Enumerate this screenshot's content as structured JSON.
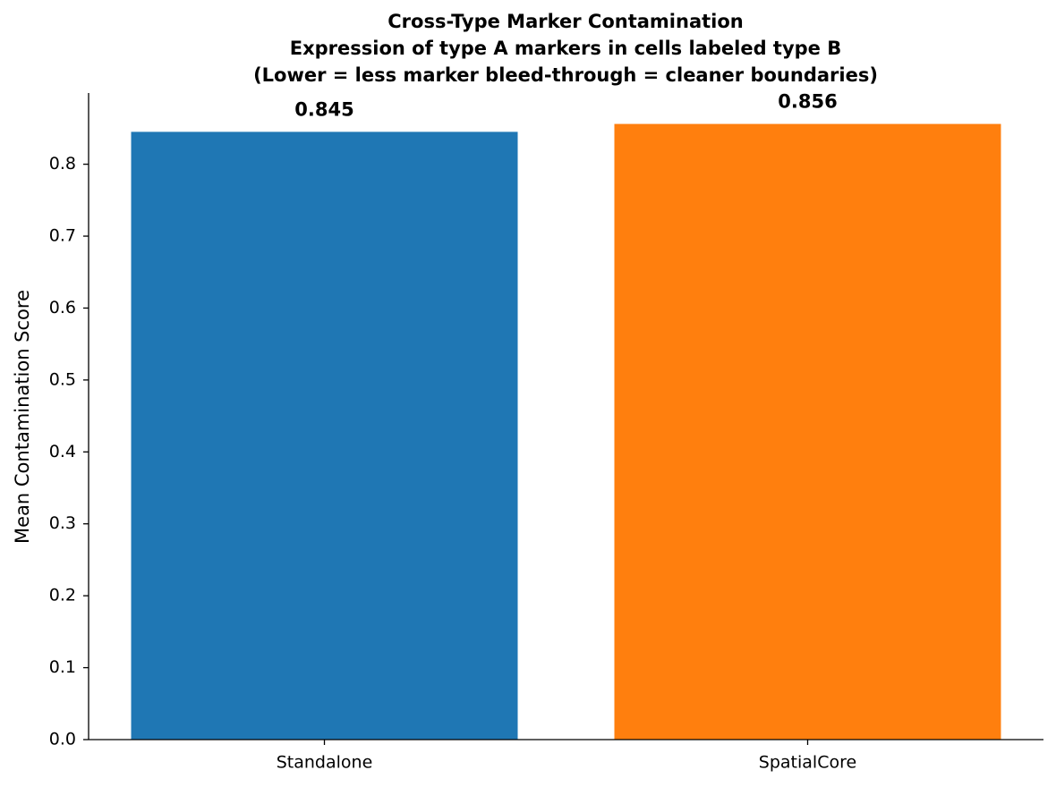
{
  "chart_data": {
    "type": "bar",
    "title": [
      "Cross-Type Marker Contamination",
      "Expression of type A markers in cells labeled type B",
      "(Lower = less marker bleed-through = cleaner boundaries)"
    ],
    "y_label": "Mean Contamination Score",
    "categories": [
      "Standalone",
      "SpatialCore"
    ],
    "values": [
      0.845,
      0.856
    ],
    "colors": [
      "#1f77b4",
      "#ff7f0e"
    ],
    "ylim": [
      0,
      0.899
    ],
    "yticks": [
      {
        "value": 0,
        "label": "0.0"
      },
      0.1,
      0.2,
      0.3,
      0.4,
      0.5,
      0.6,
      0.7,
      0.8
    ],
    "grid": false
  }
}
